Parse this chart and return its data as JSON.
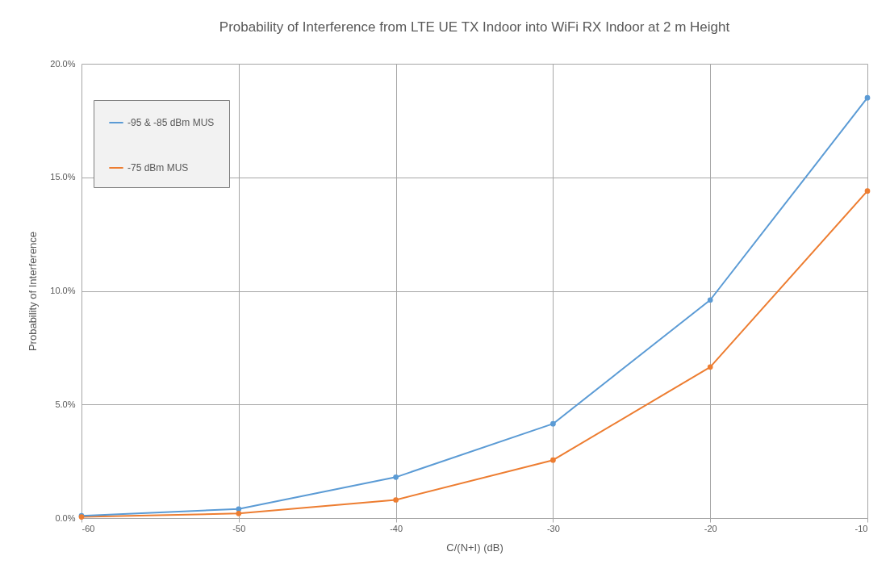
{
  "chart_data": {
    "type": "line",
    "title": "Probability of Interference from LTE UE TX Indoor into WiFi RX Indoor at 2 m Height",
    "xlabel": "C/(N+I)  (dB)",
    "ylabel": "Probability of Interference",
    "x": [
      -60,
      -50,
      -40,
      -30,
      -20,
      -10
    ],
    "series": [
      {
        "name": "-95 & -85 dBm MUS",
        "color": "#5b9bd5",
        "values": [
          0.1,
          0.4,
          1.8,
          4.15,
          9.6,
          18.5
        ]
      },
      {
        "name": "-75 dBm MUS",
        "color": "#ed7d31",
        "values": [
          0.05,
          0.2,
          0.8,
          2.55,
          6.65,
          14.4
        ]
      }
    ],
    "xlim": [
      -60,
      -10
    ],
    "xticks": [
      -60,
      -50,
      -40,
      -30,
      -20,
      -10
    ],
    "ylim": [
      0,
      20
    ],
    "yticks": [
      {
        "value": 0,
        "label": "0.0%"
      },
      {
        "value": 5,
        "label": "5.0%"
      },
      {
        "value": 10,
        "label": "10.0%"
      },
      {
        "value": 15,
        "label": "15.0%"
      },
      {
        "value": 20,
        "label": "20.0%"
      }
    ],
    "grid": true,
    "legend": "top left",
    "marker": "circle",
    "line_style": "solid"
  }
}
